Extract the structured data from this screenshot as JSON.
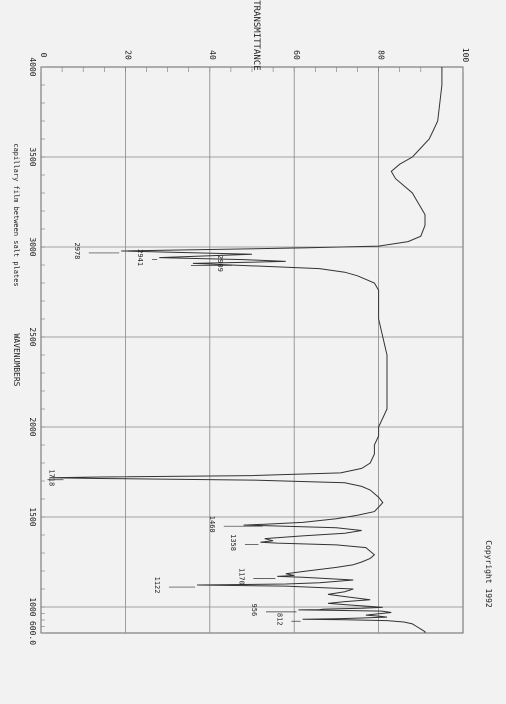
{
  "chart_data": {
    "type": "line",
    "title": "% TRANSMITTANCE",
    "xlabel": "WAVENUMBERS",
    "ylabel": "% TRANSMITTANCE",
    "sample_note": "capillary film between salt plates",
    "copyright": "Copyright 1992",
    "x_ticks": [
      "4000",
      "3500",
      "3000",
      "2500",
      "2000",
      "1500",
      "1000",
      "600.0"
    ],
    "y_ticks": [
      "0",
      "20",
      "40",
      "60",
      "80",
      "100"
    ],
    "xlim": [
      4000,
      600
    ],
    "ylim": [
      0,
      100
    ],
    "grid": true,
    "series": [
      {
        "x": [
          4000,
          3900,
          3800,
          3700,
          3650,
          3600,
          3550,
          3500,
          3460,
          3420,
          3380,
          3340,
          3300,
          3260,
          3220,
          3180,
          3120,
          3060,
          3030,
          3005,
          2995,
          2978,
          2960,
          2941,
          2930,
          2920,
          2909,
          2880,
          2860,
          2840,
          2800,
          2760,
          2700,
          2600,
          2500,
          2400,
          2300,
          2200,
          2100,
          2050,
          2000,
          1950,
          1900,
          1850,
          1800,
          1770,
          1745,
          1730,
          1722,
          1718,
          1714,
          1705,
          1690,
          1670,
          1650,
          1630,
          1610,
          1580,
          1555,
          1530,
          1510,
          1490,
          1470,
          1460,
          1455,
          1450,
          1440,
          1425,
          1410,
          1395,
          1380,
          1368,
          1360,
          1355,
          1345,
          1330,
          1310,
          1290,
          1270,
          1250,
          1235,
          1220,
          1200,
          1185,
          1175,
          1170,
          1165,
          1150,
          1135,
          1128,
          1122,
          1116,
          1100,
          1085,
          1070,
          1055,
          1040,
          1030,
          1020,
          1010,
          995,
          980,
          968,
          960,
          956,
          950,
          935,
          915,
          895,
          875,
          860,
          845,
          830,
          820,
          812,
          805,
          790,
          770,
          740,
          700,
          660,
          620,
          600
        ],
        "y": [
          95,
          95,
          94.5,
          94,
          93,
          92,
          90,
          88,
          85,
          83,
          84,
          86,
          88,
          89,
          90,
          91,
          91,
          90,
          87,
          80,
          62,
          19,
          50,
          28,
          48,
          58,
          36,
          66,
          72,
          75,
          79,
          80,
          80,
          80,
          81,
          82,
          82,
          82,
          82,
          81,
          80,
          80,
          79,
          79,
          78,
          76,
          71,
          50,
          14,
          2,
          14,
          50,
          72,
          76,
          78,
          79,
          80,
          81,
          80,
          79,
          75,
          70,
          62,
          53,
          48,
          56,
          70,
          76,
          72,
          62,
          53,
          55,
          52,
          56,
          70,
          77,
          78,
          79,
          78,
          76,
          74,
          70,
          63,
          58,
          60,
          56,
          62,
          74,
          66,
          58,
          37,
          58,
          74,
          72,
          68,
          73,
          78,
          72,
          68,
          74,
          81,
          76,
          67,
          66,
          61,
          68,
          81,
          83,
          80,
          77,
          80,
          82,
          76,
          70,
          62,
          72,
          82,
          86,
          88,
          89,
          90,
          91,
          91
        ]
      }
    ],
    "annotations": [
      {
        "label": "2978",
        "x": 2978,
        "y": 19,
        "text_at": 8
      },
      {
        "label": "2941",
        "x": 2941,
        "y": 28,
        "text_at": 23
      },
      {
        "label": "2909",
        "x": 2909,
        "y": 36,
        "text_at": 42
      },
      {
        "label": "1718",
        "x": 1718,
        "y": 2,
        "text_at": 2
      },
      {
        "label": "1460",
        "x": 1460,
        "y": 53,
        "text_at": 40
      },
      {
        "label": "1358",
        "x": 1358,
        "y": 52,
        "text_at": 45
      },
      {
        "label": "1170",
        "x": 1170,
        "y": 56,
        "text_at": 47
      },
      {
        "label": "1122",
        "x": 1122,
        "y": 37,
        "text_at": 27
      },
      {
        "label": "956",
        "x": 956,
        "y": 61,
        "text_at": 50
      },
      {
        "label": "812",
        "x": 812,
        "y": 62,
        "text_at": 56
      }
    ]
  }
}
